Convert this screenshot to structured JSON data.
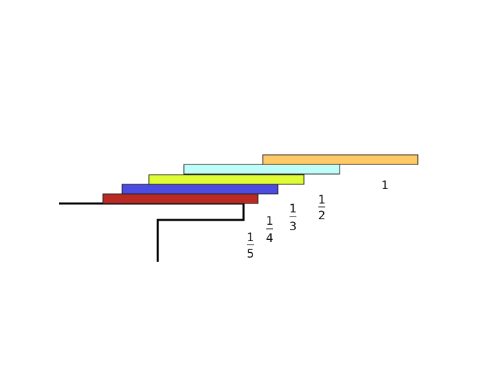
{
  "blocks": [
    {
      "id": "1",
      "label": "1",
      "color": "#FFC966"
    },
    {
      "id": "1/2",
      "numerator": "1",
      "denominator": "2",
      "color": "#BFFDF8"
    },
    {
      "id": "1/3",
      "numerator": "1",
      "denominator": "3",
      "color": "#E0FC35"
    },
    {
      "id": "1/4",
      "numerator": "1",
      "denominator": "4",
      "color": "#4C4CE0"
    },
    {
      "id": "1/5",
      "numerator": "1",
      "denominator": "5",
      "color": "#B82A22"
    }
  ],
  "track_color": "#000000"
}
